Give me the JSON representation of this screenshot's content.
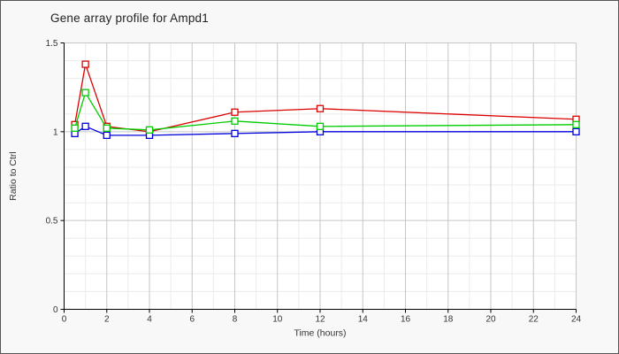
{
  "window": {
    "background_color": "#f8f8f8",
    "border_color": "#565656"
  },
  "chart_data": {
    "type": "line",
    "title": "Gene array profile for Ampd1",
    "xlabel": "Time (hours)",
    "ylabel": "Ratio to Ctrl",
    "x": [
      0.5,
      1,
      2,
      4,
      8,
      12,
      24
    ],
    "series": [
      {
        "name": "red",
        "color": "#dd0000",
        "values": [
          1.04,
          1.38,
          1.03,
          1.0,
          1.11,
          1.13,
          1.07
        ]
      },
      {
        "name": "green",
        "color": "#00cc00",
        "values": [
          1.02,
          1.22,
          1.02,
          1.01,
          1.06,
          1.03,
          1.04
        ]
      },
      {
        "name": "blue",
        "color": "#0000dd",
        "values": [
          0.99,
          1.03,
          0.98,
          0.98,
          0.99,
          1.0,
          1.0
        ]
      }
    ],
    "draw_order": [
      "red",
      "blue",
      "green"
    ],
    "xlim": [
      0,
      24
    ],
    "ylim": [
      0,
      1.5
    ],
    "x_ticks": [
      0,
      2,
      4,
      6,
      8,
      10,
      12,
      14,
      16,
      18,
      20,
      22,
      24
    ],
    "y_ticks": [
      0,
      0.5,
      1,
      1.5
    ],
    "y_tick_labels": [
      "0",
      "0.5",
      "1",
      "1.5"
    ],
    "x_minor_step": 1,
    "y_minor_step": 0.1,
    "marker": "open-square",
    "grid": true,
    "legend": false,
    "colors": {
      "plot_background": "#ffffff",
      "grid_major": "#c6c6c6",
      "grid_minor": "#ebebeb",
      "axis": "#000000",
      "tick_text": "#333333",
      "title_text": "#222222"
    }
  }
}
